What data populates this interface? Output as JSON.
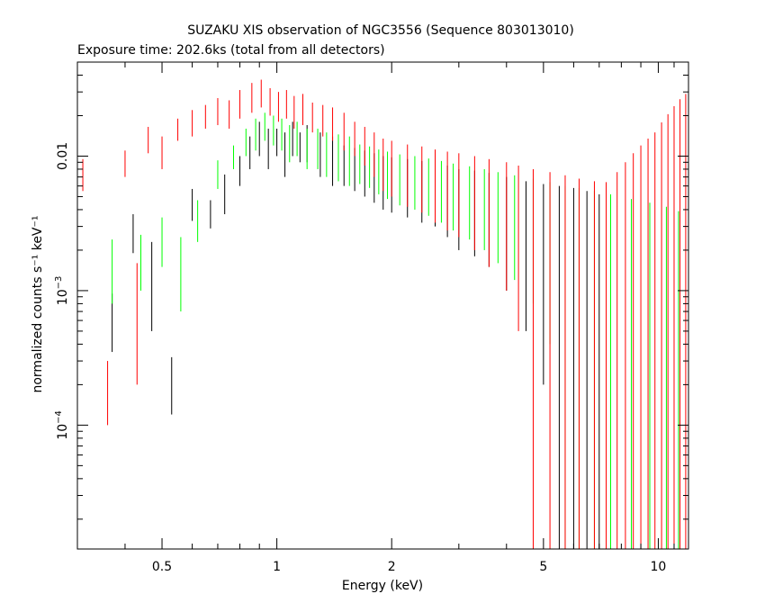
{
  "chart_data": {
    "type": "scatter",
    "title": "SUZAKU XIS observation of NGC3556 (Sequence 803013010)",
    "subtitle": "Exposure time: 202.6ks (total from all detectors)",
    "xlabel": "Energy (keV)",
    "ylabel": "normalized counts s⁻¹ keV⁻¹",
    "xscale": "log",
    "yscale": "log",
    "xlim": [
      0.3,
      12
    ],
    "ylim": [
      1.2e-05,
      0.05
    ],
    "xticks": [
      {
        "value": 0.5,
        "label": "0.5"
      },
      {
        "value": 1,
        "label": "1"
      },
      {
        "value": 2,
        "label": "2"
      },
      {
        "value": 5,
        "label": "5"
      },
      {
        "value": 10,
        "label": "10"
      }
    ],
    "yticks": [
      {
        "value": 0.01,
        "base": "0.01",
        "exp": ""
      },
      {
        "value": 0.001,
        "base": "10",
        "exp": "−3"
      },
      {
        "value": 0.0001,
        "base": "10",
        "exp": "−4"
      }
    ],
    "series": [
      {
        "color": "#000000",
        "points": [
          [
            0.37,
            0.00065,
            0.00012,
            0.0003
          ],
          [
            0.42,
            0.0028,
            8e-05,
            0.0009
          ],
          [
            0.47,
            0.0014,
            0.0001,
            0.0009
          ],
          [
            0.53,
            0.00022,
            6e-05,
            0.0001
          ],
          [
            0.6,
            0.0045,
            6e-05,
            0.0012
          ],
          [
            0.67,
            0.0038,
            5e-05,
            0.0009
          ],
          [
            0.73,
            0.0055,
            5e-05,
            0.0018
          ],
          [
            0.8,
            0.008,
            4e-05,
            0.002
          ],
          [
            0.85,
            0.011,
            4e-05,
            0.003
          ],
          [
            0.9,
            0.014,
            4e-05,
            0.004
          ],
          [
            0.95,
            0.012,
            4e-05,
            0.004
          ],
          [
            1.0,
            0.013,
            4e-05,
            0.003
          ],
          [
            1.05,
            0.011,
            4e-05,
            0.004
          ],
          [
            1.1,
            0.014,
            4e-05,
            0.004
          ],
          [
            1.15,
            0.012,
            4e-05,
            0.003
          ],
          [
            1.2,
            0.013,
            4e-05,
            0.004
          ],
          [
            1.3,
            0.011,
            4e-05,
            0.004
          ],
          [
            1.4,
            0.01,
            4e-05,
            0.004
          ],
          [
            1.5,
            0.009,
            4e-05,
            0.003
          ],
          [
            1.6,
            0.0085,
            4e-05,
            0.003
          ],
          [
            1.7,
            0.008,
            4e-05,
            0.003
          ],
          [
            1.8,
            0.0075,
            4e-05,
            0.003
          ],
          [
            1.9,
            0.007,
            4e-05,
            0.003
          ],
          [
            2.0,
            0.0068,
            4e-05,
            0.003
          ],
          [
            2.2,
            0.0065,
            4e-05,
            0.003
          ],
          [
            2.4,
            0.0062,
            4e-05,
            0.003
          ],
          [
            2.6,
            0.006,
            4e-05,
            0.003
          ],
          [
            2.8,
            0.0055,
            4e-05,
            0.003
          ],
          [
            3.0,
            0.005,
            4e-05,
            0.003
          ],
          [
            3.3,
            0.0048,
            4e-05,
            0.003
          ],
          [
            3.6,
            0.0045,
            4e-05,
            0.003
          ],
          [
            4.0,
            0.004,
            4e-05,
            0.003
          ],
          [
            4.5,
            0.0035,
            4e-05,
            0.003
          ],
          [
            5.0,
            0.0032,
            4e-05,
            0.003
          ],
          [
            5.5,
            0.003,
            4e-05,
            0.003
          ],
          [
            6.0,
            0.0028,
            4e-05,
            0.003
          ],
          [
            6.5,
            0.0025,
            4e-05,
            0.003
          ],
          [
            7.0,
            0.0022,
            4e-05,
            0.003
          ],
          [
            7.5,
            0.002,
            4e-05,
            0.003
          ]
        ]
      },
      {
        "color": "#00ff00",
        "points": [
          [
            0.37,
            0.0016,
            0.00015,
            0.0008
          ],
          [
            0.44,
            0.0018,
            8e-05,
            0.0008
          ],
          [
            0.5,
            0.0025,
            7e-05,
            0.001
          ],
          [
            0.56,
            0.0016,
            6e-05,
            0.0009
          ],
          [
            0.62,
            0.0035,
            6e-05,
            0.0012
          ],
          [
            0.7,
            0.0075,
            5e-05,
            0.0018
          ],
          [
            0.77,
            0.01,
            5e-05,
            0.002
          ],
          [
            0.83,
            0.013,
            4e-05,
            0.003
          ],
          [
            0.88,
            0.015,
            4e-05,
            0.004
          ],
          [
            0.93,
            0.017,
            4e-05,
            0.004
          ],
          [
            0.98,
            0.016,
            4e-05,
            0.004
          ],
          [
            1.03,
            0.015,
            4e-05,
            0.004
          ],
          [
            1.08,
            0.013,
            4e-05,
            0.004
          ],
          [
            1.13,
            0.014,
            4e-05,
            0.004
          ],
          [
            1.2,
            0.012,
            4e-05,
            0.004
          ],
          [
            1.28,
            0.012,
            4e-05,
            0.004
          ],
          [
            1.35,
            0.011,
            4e-05,
            0.004
          ],
          [
            1.45,
            0.0105,
            4e-05,
            0.004
          ],
          [
            1.55,
            0.01,
            4e-05,
            0.004
          ],
          [
            1.65,
            0.0092,
            4e-05,
            0.003
          ],
          [
            1.75,
            0.0088,
            4e-05,
            0.003
          ],
          [
            1.85,
            0.0082,
            4e-05,
            0.003
          ],
          [
            1.95,
            0.0078,
            4e-05,
            0.003
          ],
          [
            2.1,
            0.0073,
            4e-05,
            0.003
          ],
          [
            2.3,
            0.007,
            4e-05,
            0.003
          ],
          [
            2.5,
            0.0066,
            4e-05,
            0.003
          ],
          [
            2.7,
            0.0062,
            4e-05,
            0.003
          ],
          [
            2.9,
            0.0058,
            4e-05,
            0.003
          ],
          [
            3.2,
            0.0054,
            4e-05,
            0.003
          ],
          [
            3.5,
            0.005,
            4e-05,
            0.003
          ],
          [
            3.8,
            0.0046,
            4e-05,
            0.003
          ],
          [
            4.2,
            0.0042,
            4e-05,
            0.003
          ],
          [
            4.7,
            0.0038,
            4e-05,
            0.003
          ],
          [
            5.2,
            0.0034,
            4e-05,
            0.003
          ],
          [
            5.7,
            0.003,
            4e-05,
            0.003
          ],
          [
            6.2,
            0.0028,
            4e-05,
            0.003
          ],
          [
            6.8,
            0.0025,
            4e-05,
            0.003
          ],
          [
            7.5,
            0.0022,
            4e-05,
            0.003
          ],
          [
            8.5,
            0.0018,
            4e-05,
            0.003
          ],
          [
            9.5,
            0.0015,
            4e-05,
            0.003
          ],
          [
            10.5,
            0.0012,
            4e-05,
            0.003
          ],
          [
            11.3,
            0.0009,
            4e-05,
            0.003
          ]
        ]
      },
      {
        "color": "#ff0000",
        "points": [
          [
            0.31,
            0.0075,
            8e-05,
            0.002
          ],
          [
            0.36,
            0.0002,
            0.00012,
            0.0001
          ],
          [
            0.4,
            0.009,
            7e-05,
            0.002
          ],
          [
            0.43,
            0.0009,
            7e-05,
            0.0007
          ],
          [
            0.46,
            0.0135,
            6e-05,
            0.003
          ],
          [
            0.5,
            0.011,
            6e-05,
            0.003
          ],
          [
            0.55,
            0.016,
            6e-05,
            0.003
          ],
          [
            0.6,
            0.018,
            5e-05,
            0.004
          ],
          [
            0.65,
            0.02,
            5e-05,
            0.004
          ],
          [
            0.7,
            0.022,
            5e-05,
            0.005
          ],
          [
            0.75,
            0.021,
            4e-05,
            0.005
          ],
          [
            0.8,
            0.025,
            4e-05,
            0.006
          ],
          [
            0.86,
            0.028,
            4e-05,
            0.007
          ],
          [
            0.91,
            0.03,
            4e-05,
            0.007
          ],
          [
            0.96,
            0.026,
            4e-05,
            0.006
          ],
          [
            1.01,
            0.024,
            4e-05,
            0.006
          ],
          [
            1.06,
            0.025,
            4e-05,
            0.006
          ],
          [
            1.11,
            0.022,
            4e-05,
            0.006
          ],
          [
            1.17,
            0.023,
            4e-05,
            0.006
          ],
          [
            1.24,
            0.02,
            4e-05,
            0.005
          ],
          [
            1.32,
            0.019,
            4e-05,
            0.005
          ],
          [
            1.4,
            0.018,
            4e-05,
            0.005
          ],
          [
            1.5,
            0.016,
            4e-05,
            0.005
          ],
          [
            1.6,
            0.014,
            4e-05,
            0.004
          ],
          [
            1.7,
            0.0125,
            4e-05,
            0.004
          ],
          [
            1.8,
            0.011,
            4e-05,
            0.004
          ],
          [
            1.9,
            0.0095,
            4e-05,
            0.004
          ],
          [
            2.0,
            0.009,
            4e-05,
            0.004
          ],
          [
            2.2,
            0.0082,
            4e-05,
            0.004
          ],
          [
            2.4,
            0.0078,
            4e-05,
            0.004
          ],
          [
            2.6,
            0.0072,
            4e-05,
            0.004
          ],
          [
            2.8,
            0.0068,
            4e-05,
            0.004
          ],
          [
            3.0,
            0.0065,
            4e-05,
            0.004
          ],
          [
            3.3,
            0.006,
            4e-05,
            0.004
          ],
          [
            3.6,
            0.0055,
            4e-05,
            0.004
          ],
          [
            4.0,
            0.005,
            4e-05,
            0.004
          ],
          [
            4.3,
            0.0045,
            4e-05,
            0.004
          ],
          [
            4.7,
            0.004,
            4e-05,
            0.004
          ],
          [
            5.2,
            0.0036,
            4e-05,
            0.004
          ],
          [
            5.7,
            0.0032,
            4e-05,
            0.004
          ],
          [
            6.2,
            0.0028,
            4e-05,
            0.004
          ],
          [
            6.8,
            0.0025,
            4e-05,
            0.004
          ],
          [
            7.3,
            0.0024,
            4e-05,
            0.004
          ],
          [
            7.8,
            0.0026,
            4e-05,
            0.005
          ],
          [
            8.2,
            0.003,
            4e-05,
            0.006
          ],
          [
            8.6,
            0.0035,
            4e-05,
            0.007
          ],
          [
            9.0,
            0.004,
            4e-05,
            0.008
          ],
          [
            9.4,
            0.0045,
            4e-05,
            0.009
          ],
          [
            9.8,
            0.005,
            4e-05,
            0.01
          ],
          [
            10.2,
            0.0058,
            4e-05,
            0.012
          ],
          [
            10.6,
            0.0065,
            4e-05,
            0.014
          ],
          [
            11.0,
            0.0075,
            4e-05,
            0.016
          ],
          [
            11.4,
            0.0085,
            4e-05,
            0.018
          ],
          [
            11.8,
            0.009,
            4e-05,
            0.02
          ]
        ]
      }
    ]
  }
}
